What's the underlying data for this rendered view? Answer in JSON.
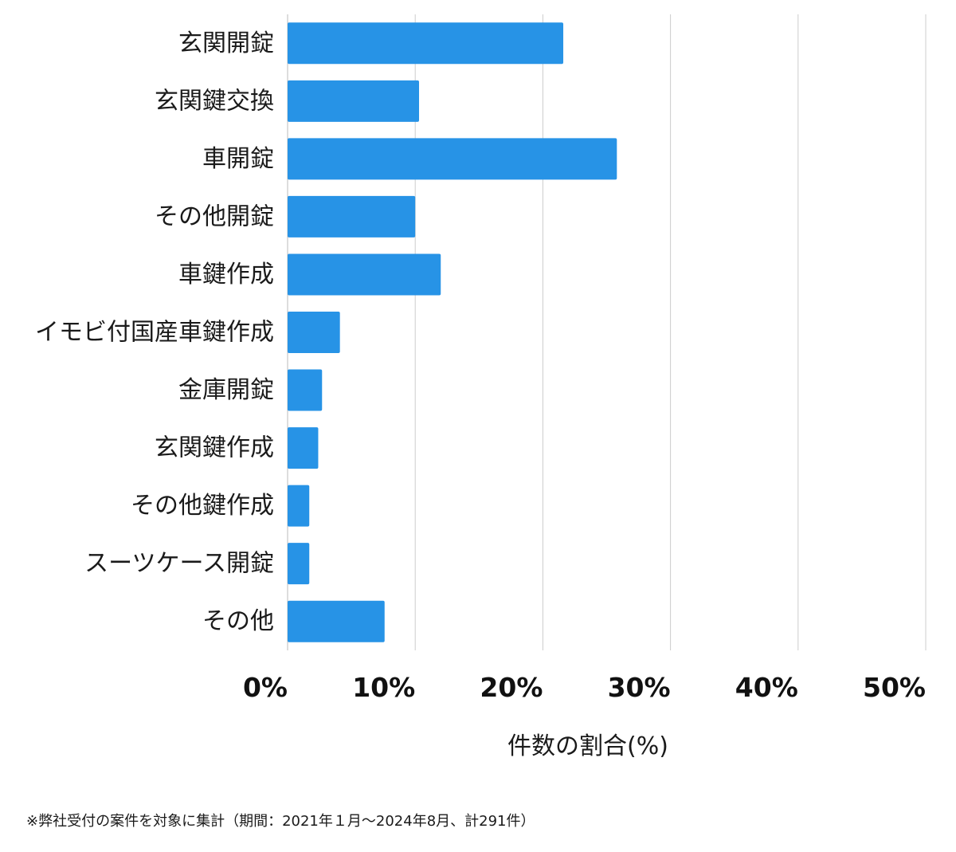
{
  "chart_data": {
    "type": "bar",
    "orientation": "horizontal",
    "categories": [
      "玄関開錠",
      "玄関鍵交換",
      "車開錠",
      "その他開錠",
      "車鍵作成",
      "イモビ付国産車鍵作成",
      "金庫開錠",
      "玄関鍵作成",
      "その他鍵作成",
      "スーツケース開錠",
      "その他"
    ],
    "values": [
      21.6,
      10.3,
      25.8,
      10.0,
      12.0,
      4.1,
      2.7,
      2.4,
      1.7,
      1.7,
      7.6
    ],
    "xlim": [
      0,
      50
    ],
    "xticks": [
      0,
      10,
      20,
      30,
      40,
      50
    ],
    "xtick_labels": [
      "0%",
      "10%",
      "20%",
      "30%",
      "40%",
      "50%"
    ],
    "xlabel": "件数の割合(%)",
    "ylabel": "",
    "title": "",
    "grid": "vertical",
    "bar_color": "#2793e6",
    "grid_color": "#cccccc"
  },
  "footnote": "※弊社受付の案件を対象に集計（期間：2021年１月〜2024年8月、計291件）"
}
